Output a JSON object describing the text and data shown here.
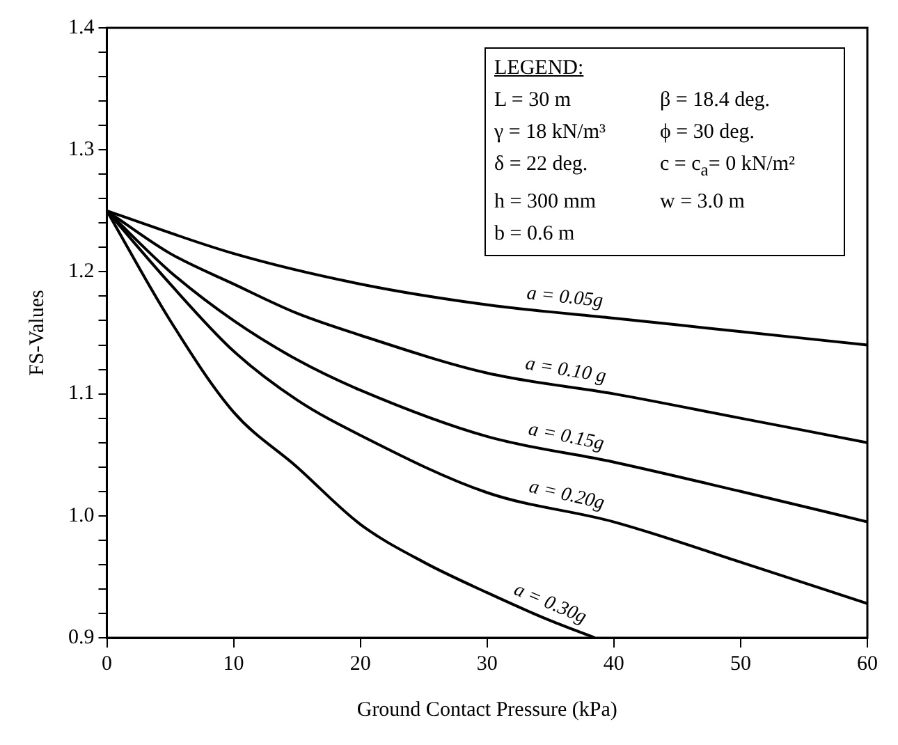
{
  "chart_data": {
    "type": "line",
    "xlabel": "Ground Contact Pressure (kPa)",
    "ylabel": "FS-Values",
    "legend_title": "LEGEND:",
    "annotations": [
      "L = 30 m",
      "β = 18.4 deg.",
      "γ = 18 kN/m³",
      "ϕ = 30 deg.",
      "δ = 22 deg.",
      "c = c$_{a}$= 0 kN/m²",
      "h = 300 mm",
      "w = 3.0 m",
      "b = 0.6 m"
    ],
    "xlim": [
      0,
      60
    ],
    "xticks": [
      0,
      10,
      20,
      30,
      40,
      50,
      60
    ],
    "ylim": [
      0.9,
      1.4
    ],
    "yticks": [
      {
        "value": 0.9,
        "label": "0.9"
      },
      {
        "value": 0.92,
        "label": null
      },
      {
        "value": 0.94,
        "label": null
      },
      {
        "value": 0.96,
        "label": null
      },
      {
        "value": 0.98,
        "label": null
      },
      {
        "value": 1,
        "label": "1.0"
      },
      {
        "value": 1.02,
        "label": null
      },
      {
        "value": 1.04,
        "label": null
      },
      {
        "value": 1.06,
        "label": null
      },
      {
        "value": 1.08,
        "label": null
      },
      {
        "value": 1.1,
        "label": "1.1"
      },
      {
        "value": 1.12,
        "label": null
      },
      {
        "value": 1.14,
        "label": null
      },
      {
        "value": 1.16,
        "label": null
      },
      {
        "value": 1.18,
        "label": null
      },
      {
        "value": 1.2,
        "label": "1.2"
      },
      {
        "value": 1.22,
        "label": null
      },
      {
        "value": 1.24,
        "label": null
      },
      {
        "value": 1.26,
        "label": null
      },
      {
        "value": 1.28,
        "label": null
      },
      {
        "value": 1.3,
        "label": "1.3"
      },
      {
        "value": 1.32,
        "label": null
      },
      {
        "value": 1.34,
        "label": null
      },
      {
        "value": 1.36,
        "label": null
      },
      {
        "value": 1.38,
        "label": null
      },
      {
        "value": 1.4,
        "label": "1.4"
      }
    ],
    "grid": false,
    "legend": false,
    "marker": "none",
    "line_style": "solid",
    "series": [
      {
        "name": "a = 0.05g",
        "color": "#000000",
        "x": [
          0,
          10,
          20,
          30,
          40,
          50,
          60
        ],
        "values": [
          1.25,
          1.215,
          1.19,
          1.173,
          1.162,
          1.151,
          1.14
        ]
      },
      {
        "name": "a = 0.10 g",
        "color": "#000000",
        "x": [
          0,
          5,
          10,
          15,
          20,
          30,
          40,
          50,
          60
        ],
        "values": [
          1.25,
          1.215,
          1.19,
          1.166,
          1.148,
          1.117,
          1.1,
          1.08,
          1.06
        ]
      },
      {
        "name": "a = 0.15g",
        "color": "#000000",
        "x": [
          0,
          5,
          10,
          15,
          20,
          30,
          40,
          50,
          60
        ],
        "values": [
          1.25,
          1.2,
          1.16,
          1.128,
          1.103,
          1.065,
          1.044,
          1.02,
          0.995
        ]
      },
      {
        "name": "a = 0.20g",
        "color": "#000000",
        "x": [
          0,
          5,
          10,
          15,
          20,
          30,
          40,
          50,
          60
        ],
        "values": [
          1.25,
          1.19,
          1.135,
          1.095,
          1.066,
          1.019,
          0.995,
          0.962,
          0.928
        ]
      },
      {
        "name": "a = 0.30g",
        "color": "#000000",
        "x": [
          0,
          5,
          10,
          15,
          20,
          25,
          30,
          35,
          38.5
        ],
        "values": [
          1.25,
          1.16,
          1.085,
          1.04,
          0.993,
          0.962,
          0.937,
          0.914,
          0.9
        ]
      }
    ]
  }
}
